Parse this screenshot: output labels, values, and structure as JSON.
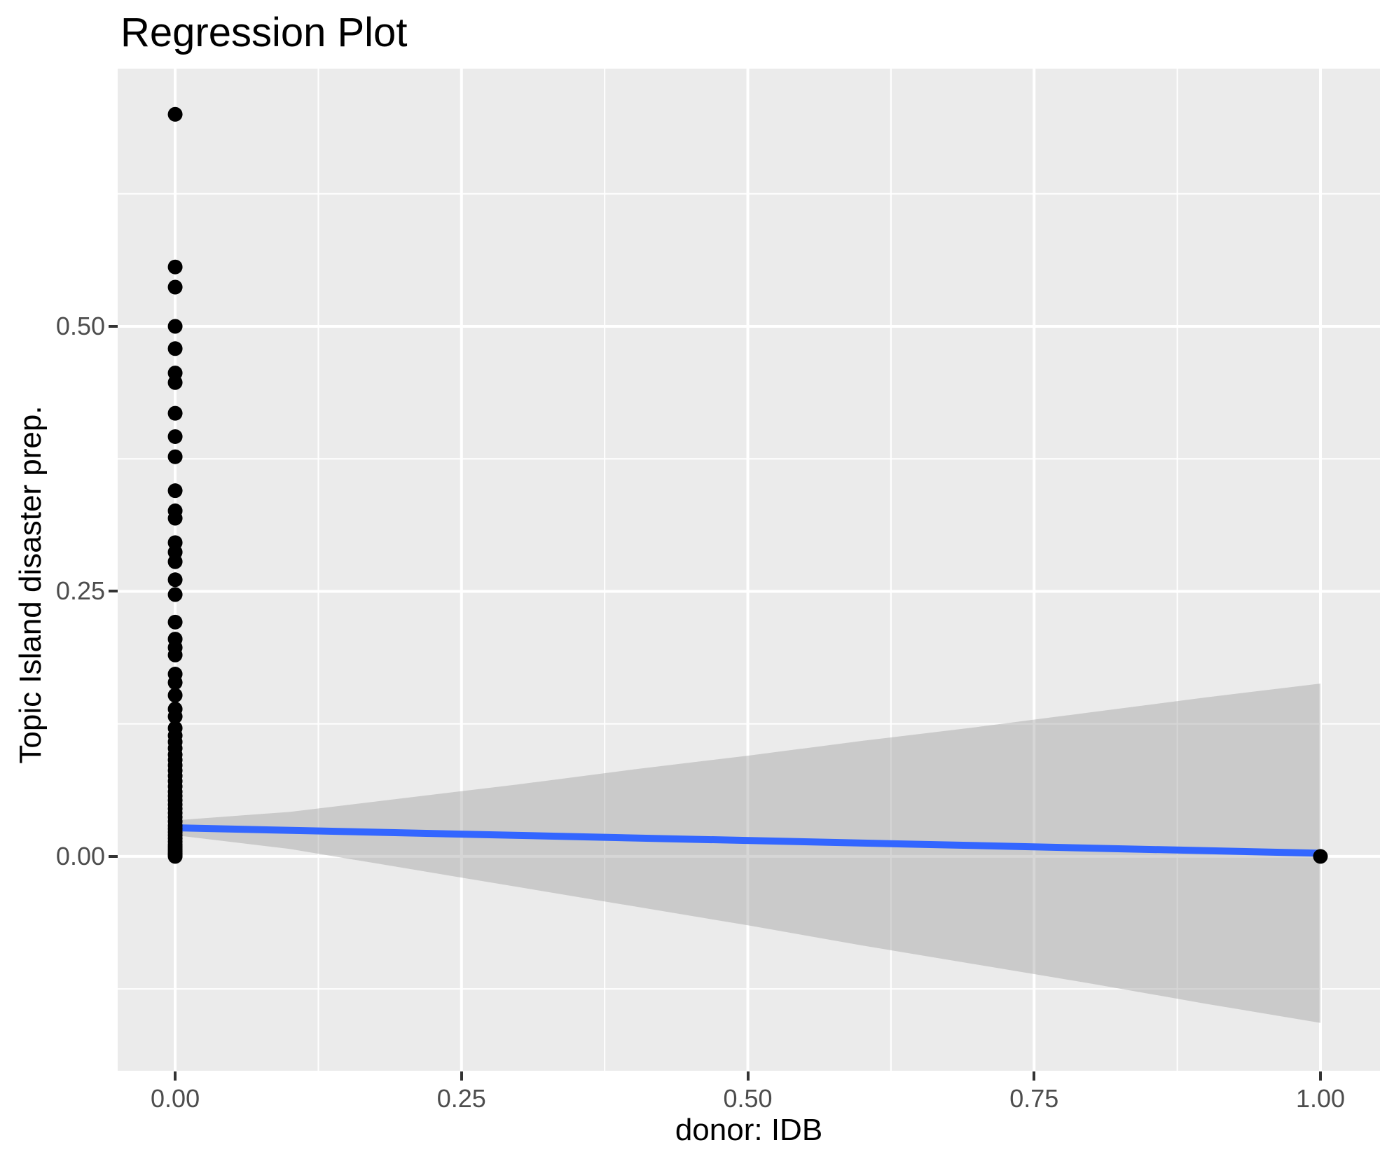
{
  "title": "Regression Plot",
  "chart_data": {
    "type": "scatter",
    "title": "Regression Plot",
    "xlabel": "donor: IDB",
    "ylabel": "Topic Island disaster prep.",
    "legend": "none",
    "grid": "white major and minor gridlines on grey panel",
    "xlim": [
      -0.0502,
      1.052
    ],
    "ylim": [
      -0.2022,
      0.7431
    ],
    "x_ticks": {
      "values": [
        0,
        0.25,
        0.5,
        0.75,
        1.0
      ],
      "labels": [
        "0.00",
        "0.25",
        "0.50",
        "0.75",
        "1.00"
      ]
    },
    "y_ticks": {
      "values": [
        0,
        0.25,
        0.5
      ],
      "labels": [
        "0.00",
        "0.25",
        "0.50"
      ]
    },
    "x_minor": [
      0.125,
      0.375,
      0.625,
      0.875
    ],
    "y_minor": [
      -0.125,
      0.125,
      0.375,
      0.625
    ],
    "points_at_x0": [
      0.7,
      0.556,
      0.537,
      0.5,
      0.479,
      0.456,
      0.447,
      0.418,
      0.396,
      0.377,
      0.345,
      0.326,
      0.319,
      0.296,
      0.287,
      0.278,
      0.261,
      0.247,
      0.221,
      0.205,
      0.197,
      0.19,
      0.172,
      0.164,
      0.152,
      0.139,
      0.132,
      0.121,
      0.114,
      0.108,
      0.102,
      0.096,
      0.091,
      0.086,
      0.081,
      0.076,
      0.071,
      0.066,
      0.061,
      0.057,
      0.053,
      0.049,
      0.045,
      0.041,
      0.037,
      0.033,
      0.029,
      0.026,
      0.023,
      0.02,
      0.017,
      0.014,
      0.011,
      0.009,
      0.007,
      0.005,
      0.003,
      0.002,
      0.001,
      0.0
    ],
    "points_other": [
      {
        "x": 1.0,
        "y": 0.0
      }
    ],
    "regression_line": {
      "x": [
        0,
        1
      ],
      "y": [
        0.027,
        0.003
      ]
    },
    "ci_band": {
      "x": [
        0.0,
        0.1,
        0.2,
        0.3,
        0.4,
        0.5,
        0.6,
        0.7,
        0.8,
        0.9,
        1.0
      ],
      "upper": [
        0.034,
        0.042,
        0.055,
        0.068,
        0.082,
        0.095,
        0.109,
        0.122,
        0.136,
        0.15,
        0.163
      ],
      "lower": [
        0.02,
        0.007,
        -0.011,
        -0.029,
        -0.047,
        -0.065,
        -0.084,
        -0.102,
        -0.12,
        -0.139,
        -0.157
      ]
    },
    "colors": {
      "panel_background": "#EBEBEB",
      "gridline": "#FFFFFF",
      "point": "#000000",
      "regression_line": "#3366FF",
      "ci_band_fill": "#999999",
      "ci_band_opacity": 0.4,
      "tick_label": "#4D4D4D",
      "tick_mark": "#333333",
      "text": "#000000"
    }
  }
}
